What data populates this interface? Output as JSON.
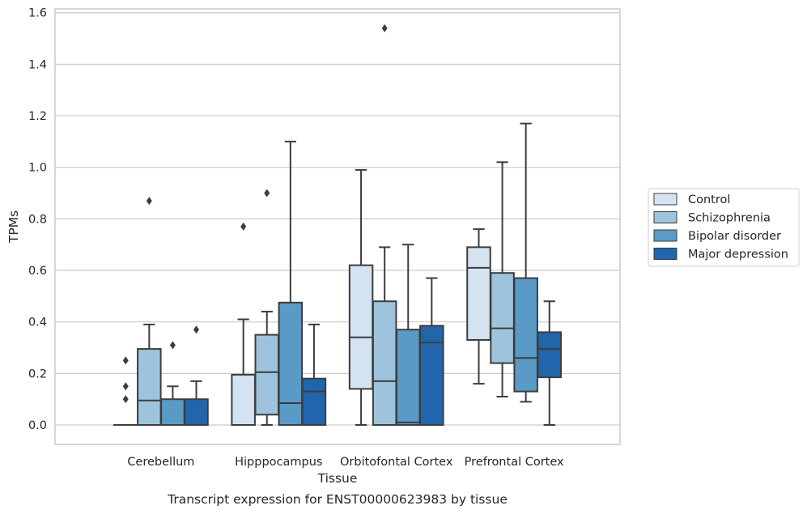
{
  "chart_data": {
    "type": "box",
    "title": "",
    "caption": "Transcript expression for ENST00000623983 by tissue",
    "xlabel": "Tissue",
    "ylabel": "TPMs",
    "ylim": [
      -0.075,
      1.62
    ],
    "yticks": [
      "0.0",
      "0.2",
      "0.4",
      "0.6",
      "0.8",
      "1.0",
      "1.2",
      "1.4",
      "1.6"
    ],
    "grid": "horizontal",
    "legend_position": "right",
    "categories": [
      "Cerebellum",
      "Hipppocampus",
      "Orbitofontal Cortex",
      "Prefrontal Cortex"
    ],
    "series": [
      {
        "name": "Control",
        "color": "#d4e3f2",
        "boxes": [
          {
            "whislo": 0.0,
            "q1": 0.0,
            "med": 0.0,
            "q3": 0.0,
            "whishi": 0.0,
            "fliers": [
              0.1,
              0.15,
              0.25
            ]
          },
          {
            "whislo": 0.0,
            "q1": 0.0,
            "med": 0.0,
            "q3": 0.195,
            "whishi": 0.41,
            "fliers": [
              0.77
            ]
          },
          {
            "whislo": 0.0,
            "q1": 0.14,
            "med": 0.34,
            "q3": 0.62,
            "whishi": 0.99,
            "fliers": []
          },
          {
            "whislo": 0.16,
            "q1": 0.33,
            "med": 0.61,
            "q3": 0.69,
            "whishi": 0.76,
            "fliers": []
          }
        ]
      },
      {
        "name": "Schizophrenia",
        "color": "#9dc4dc",
        "boxes": [
          {
            "whislo": 0.0,
            "q1": 0.0,
            "med": 0.095,
            "q3": 0.295,
            "whishi": 0.39,
            "fliers": [
              0.87
            ]
          },
          {
            "whislo": 0.0,
            "q1": 0.04,
            "med": 0.205,
            "q3": 0.35,
            "whishi": 0.44,
            "fliers": [
              0.9
            ]
          },
          {
            "whislo": 0.0,
            "q1": 0.0,
            "med": 0.17,
            "q3": 0.48,
            "whishi": 0.69,
            "fliers": [
              1.54
            ]
          },
          {
            "whislo": 0.11,
            "q1": 0.24,
            "med": 0.375,
            "q3": 0.59,
            "whishi": 1.02,
            "fliers": []
          }
        ]
      },
      {
        "name": "Bipolar disorder",
        "color": "#5a9ac7",
        "boxes": [
          {
            "whislo": 0.0,
            "q1": 0.0,
            "med": 0.0,
            "q3": 0.1,
            "whishi": 0.15,
            "fliers": [
              0.31
            ]
          },
          {
            "whislo": 0.0,
            "q1": 0.0,
            "med": 0.085,
            "q3": 0.475,
            "whishi": 1.1,
            "fliers": []
          },
          {
            "whislo": 0.0,
            "q1": 0.0,
            "med": 0.01,
            "q3": 0.37,
            "whishi": 0.7,
            "fliers": []
          },
          {
            "whislo": 0.09,
            "q1": 0.13,
            "med": 0.26,
            "q3": 0.57,
            "whishi": 1.17,
            "fliers": []
          }
        ]
      },
      {
        "name": "Major depression",
        "color": "#2166ac",
        "boxes": [
          {
            "whislo": 0.0,
            "q1": 0.0,
            "med": 0.0,
            "q3": 0.1,
            "whishi": 0.17,
            "fliers": [
              0.37
            ]
          },
          {
            "whislo": 0.0,
            "q1": 0.0,
            "med": 0.13,
            "q3": 0.18,
            "whishi": 0.39,
            "fliers": []
          },
          {
            "whislo": 0.0,
            "q1": 0.0,
            "med": 0.32,
            "q3": 0.385,
            "whishi": 0.57,
            "fliers": []
          },
          {
            "whislo": 0.0,
            "q1": 0.185,
            "med": 0.295,
            "q3": 0.36,
            "whishi": 0.48,
            "fliers": []
          }
        ]
      }
    ]
  }
}
